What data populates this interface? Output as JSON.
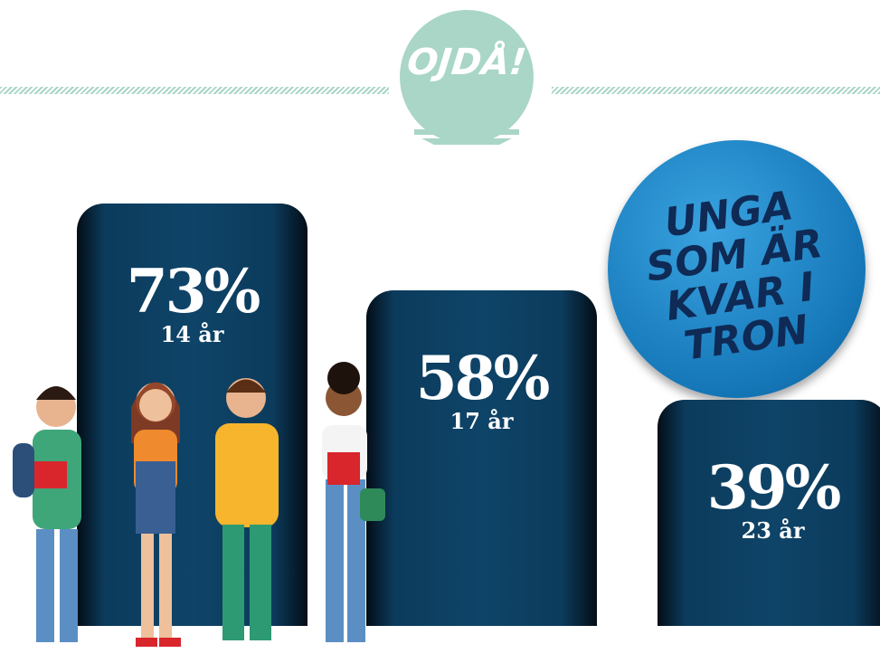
{
  "chart_data": {
    "type": "bar",
    "title": "UNGA SOM ÄR KVAR I TRON",
    "annotation": "OJDÅ!",
    "categories": [
      "14 år",
      "17 år",
      "23 år"
    ],
    "values": [
      73,
      58,
      39
    ],
    "value_labels": [
      "73%",
      "58%",
      "39%"
    ],
    "color": "#0c3b5c"
  }
}
